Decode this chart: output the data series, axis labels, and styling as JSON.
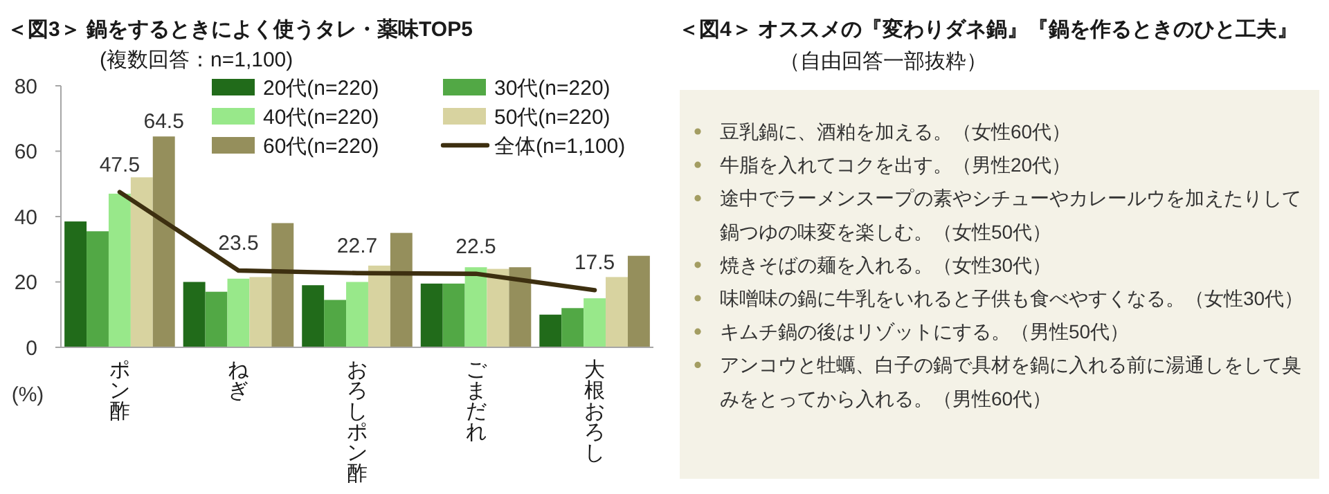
{
  "chart_data": [
    {
      "type": "bar",
      "title": "＜図3＞ 鍋をするときによく使うタレ・薬味TOP5",
      "subtitle": "(複数回答：n=1,100)",
      "ylabel": "(%)",
      "categories": [
        "ポン酢",
        "ねぎ",
        "おろしポン酢",
        "ごまだれ",
        "大根おろし"
      ],
      "series": [
        {
          "name": "20代(n=220)",
          "color": "#216b1a",
          "values": [
            38.5,
            20,
            19,
            19.5,
            10
          ]
        },
        {
          "name": "30代(n=220)",
          "color": "#52a845",
          "values": [
            35.5,
            17,
            14.5,
            19.5,
            12
          ]
        },
        {
          "name": "40代(n=220)",
          "color": "#98e88a",
          "values": [
            47,
            21,
            20,
            24.5,
            15
          ]
        },
        {
          "name": "50代(n=220)",
          "color": "#d8d3a0",
          "values": [
            52,
            21.5,
            25,
            24,
            21.5
          ]
        },
        {
          "name": "60代(n=220)",
          "color": "#958f5c",
          "values": [
            64.5,
            38,
            35,
            24.5,
            28
          ],
          "value_labels": [
            "64.5",
            null,
            null,
            null,
            null
          ]
        },
        {
          "name": "全体(n=1,100)",
          "type": "line",
          "color": "#3d2f10",
          "values": [
            47.5,
            23.5,
            22.7,
            22.5,
            17.5
          ],
          "value_labels": [
            "47.5",
            "23.5",
            "22.7",
            "22.5",
            "17.5"
          ]
        }
      ],
      "ylim": [
        0,
        80
      ],
      "yticks": [
        0,
        20,
        40,
        60,
        80
      ],
      "legend": "top",
      "line_style": "solid"
    },
    {
      "type": "other",
      "title": "＜図4＞ オススメの『変わりダネ鍋』『鍋を作るときのひと工夫』",
      "subtitle": "（自由回答一部抜粋）",
      "annotations": [
        "豆乳鍋に、酒粕を加える。（女性60代）",
        "牛脂を入れてコクを出す。（男性20代）",
        "途中でラーメンスープの素やシチューやカレールウを加えたりして鍋つゆの味変を楽しむ。（女性50代）",
        "焼きそばの麺を入れる。（女性30代）",
        "味噌味の鍋に牛乳をいれると子供も食べやすくなる。（女性30代）",
        "キムチ鍋の後はリゾットにする。（男性50代）",
        "アンコウと牡蠣、白子の鍋で具材を鍋に入れる前に湯通しをして臭みをとってから入れる。（男性60代）"
      ]
    }
  ]
}
